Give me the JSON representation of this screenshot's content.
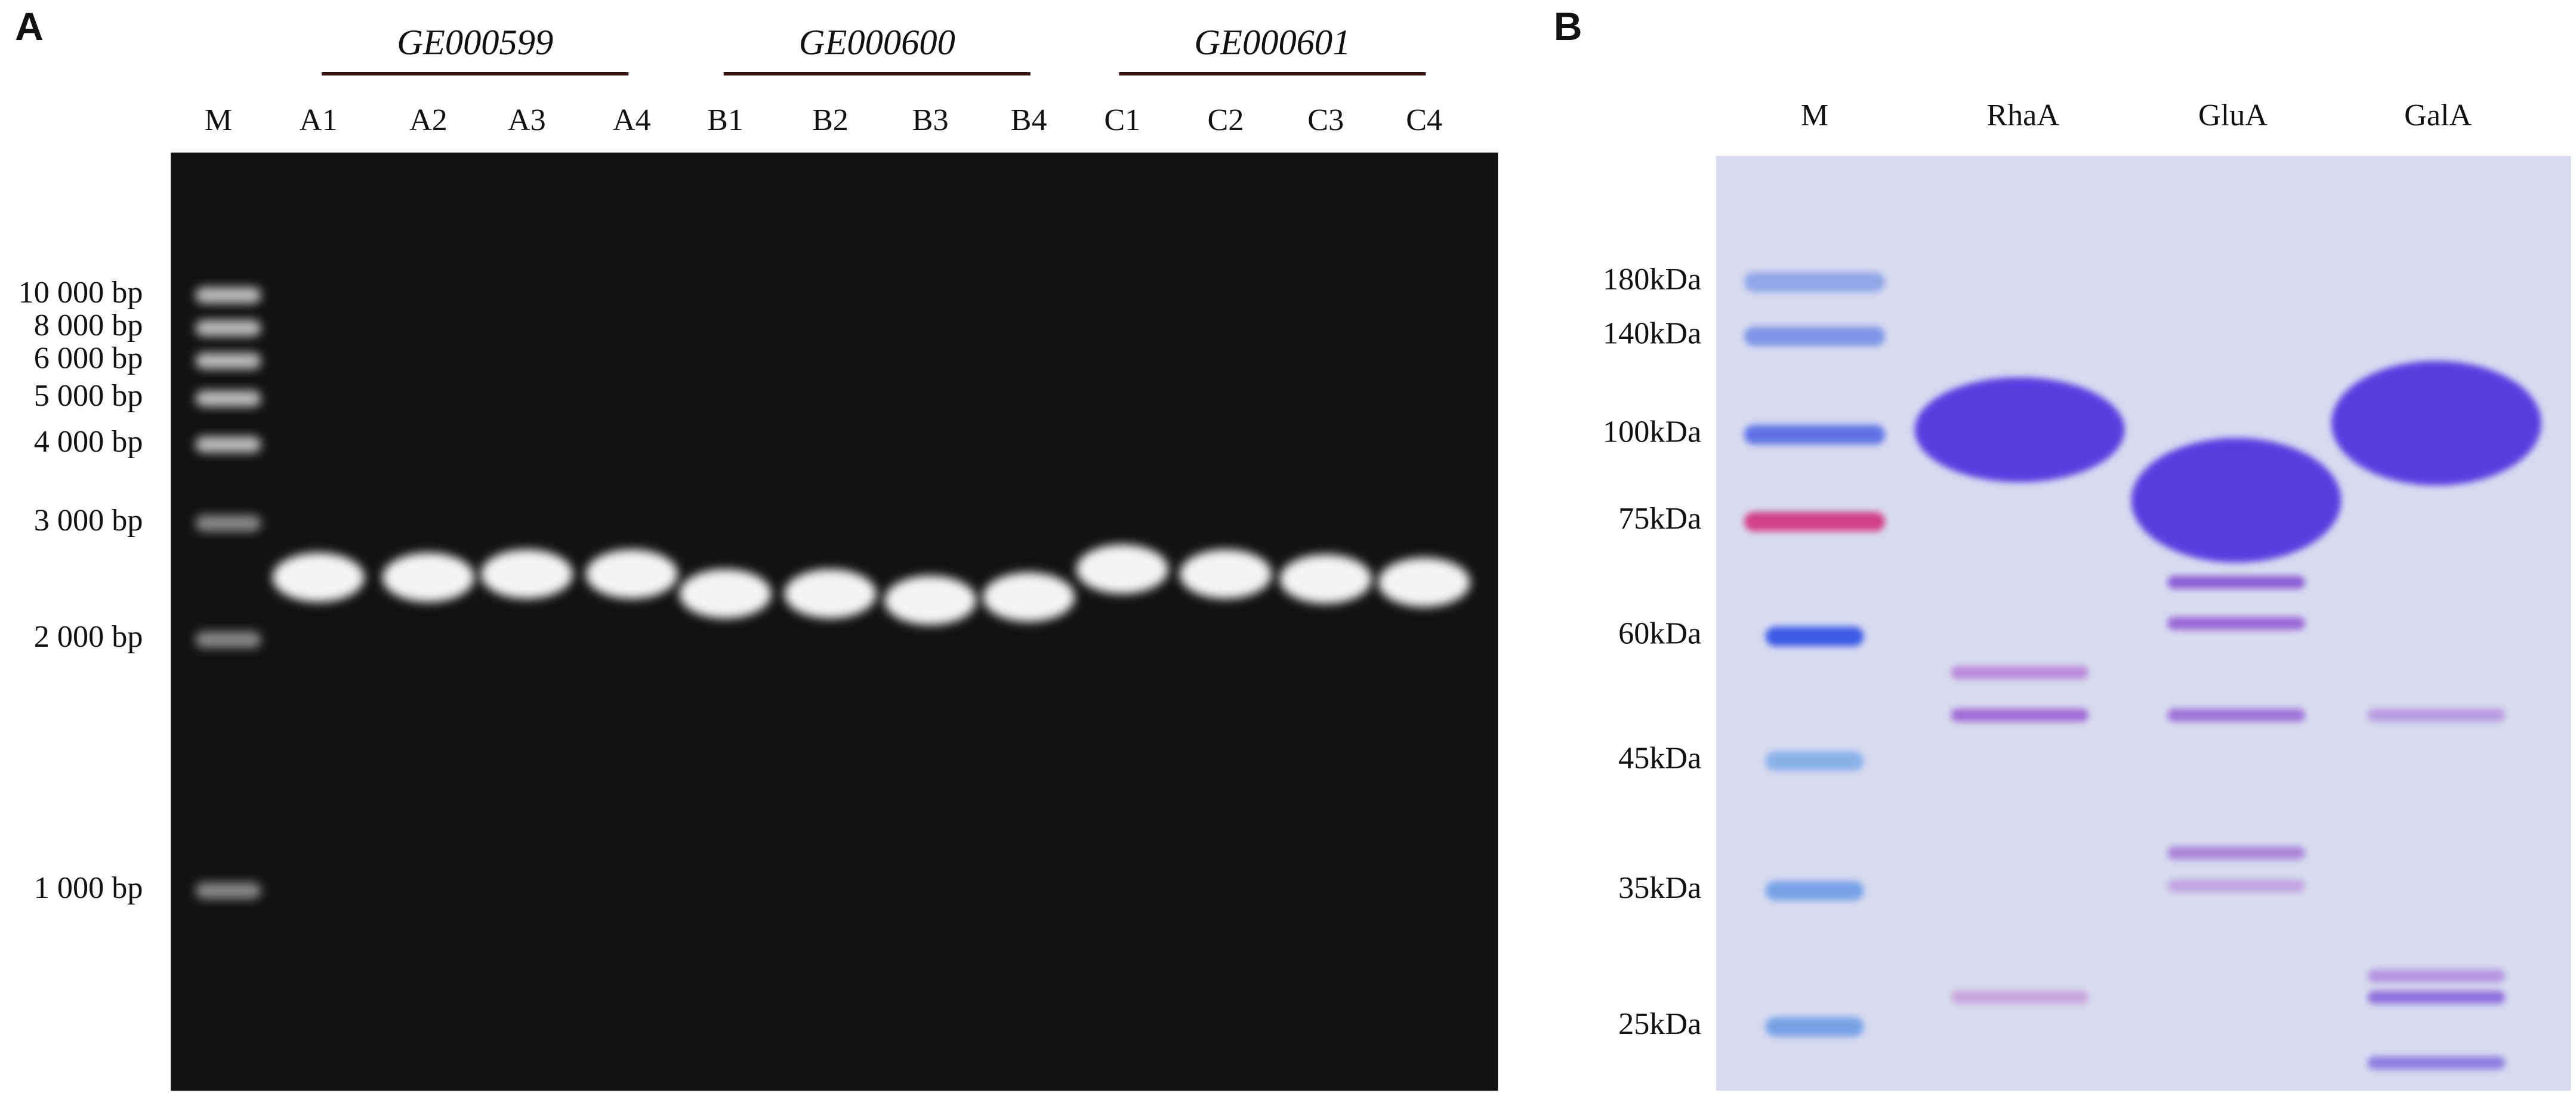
{
  "panel_a": {
    "label": "A",
    "groups": [
      "GE000599",
      "GE000600",
      "GE000601"
    ],
    "lanes": [
      "M",
      "A1",
      "A2",
      "A3",
      "A4",
      "B1",
      "B2",
      "B3",
      "B4",
      "C1",
      "C2",
      "C3",
      "C4"
    ],
    "markers": [
      "10 000 bp",
      "8 000 bp",
      "6 000 bp",
      "5 000 bp",
      "4 000 bp",
      "3 000 bp",
      "2 000 bp",
      "1 000 bp"
    ]
  },
  "panel_b": {
    "label": "B",
    "lanes": [
      "M",
      "RhaA",
      "GluA",
      "GalA"
    ],
    "markers": [
      "180kDa",
      "140kDa",
      "100kDa",
      "75kDa",
      "60kDa",
      "45kDa",
      "35kDa",
      "25kDa"
    ]
  }
}
